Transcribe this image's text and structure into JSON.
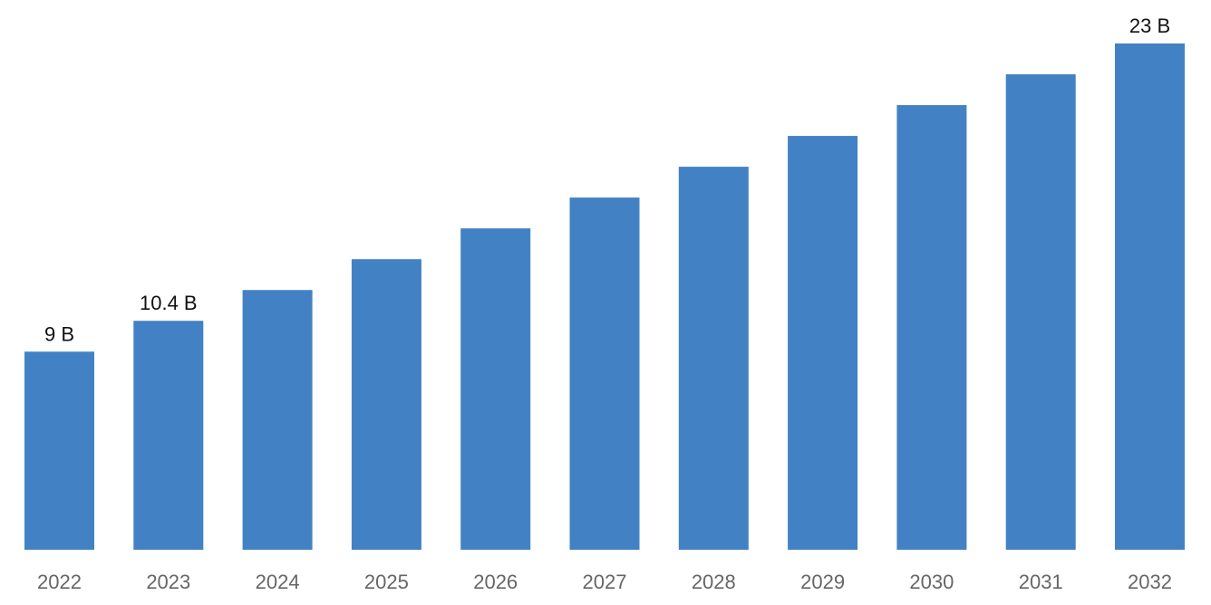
{
  "chart_data": {
    "type": "bar",
    "categories": [
      "2022",
      "2023",
      "2024",
      "2025",
      "2026",
      "2027",
      "2028",
      "2029",
      "2030",
      "2031",
      "2032"
    ],
    "values": [
      9,
      10.4,
      11.8,
      13.2,
      14.6,
      16.0,
      17.4,
      18.8,
      20.2,
      21.6,
      23
    ],
    "data_labels": [
      "9 B",
      "10.4 B",
      "",
      "",
      "",
      "",
      "",
      "",
      "",
      "",
      "23 B"
    ],
    "unit": "B",
    "title": "",
    "xlabel": "",
    "ylabel": "",
    "ylim": [
      0,
      23
    ],
    "grid": false,
    "legend": "none",
    "colors": {
      "bar": "#4282c4",
      "data_label": "#111111",
      "tick_label": "#666666"
    }
  }
}
